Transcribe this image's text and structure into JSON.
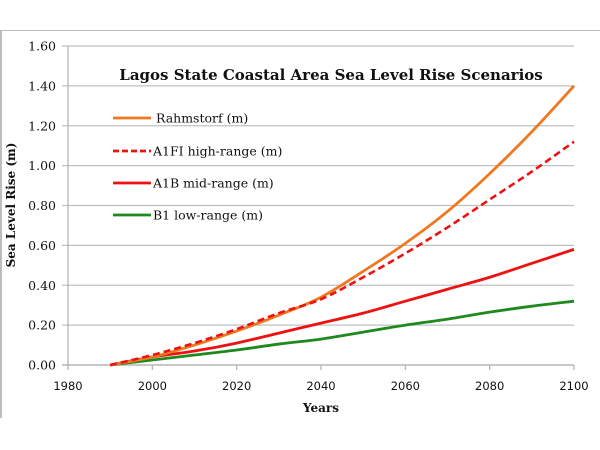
{
  "chart_data": {
    "type": "line",
    "title": "Lagos State Coastal Area Sea Level Rise Scenarios",
    "xlabel": "Years",
    "ylabel": "Sea Level Rise (m)",
    "xlim": [
      1980,
      2100
    ],
    "ylim": [
      0,
      1.6
    ],
    "x_ticks": [
      "1980",
      "2000",
      "2020",
      "2040",
      "2060",
      "2080",
      "2100"
    ],
    "y_ticks": [
      "0.00",
      "0.20",
      "0.40",
      "0.60",
      "0.80",
      "1.00",
      "1.20",
      "1.40",
      "1.60"
    ],
    "grid": true,
    "legend_position": "top-left",
    "x": [
      1990,
      2000,
      2010,
      2020,
      2030,
      2040,
      2050,
      2060,
      2070,
      2080,
      2090,
      2100
    ],
    "series": [
      {
        "name": "Rahmstorf (m)",
        "color": "#f07820",
        "dash": false,
        "values": [
          0,
          0.04,
          0.1,
          0.17,
          0.25,
          0.34,
          0.47,
          0.61,
          0.77,
          0.96,
          1.17,
          1.4
        ]
      },
      {
        "name": "A1FI high-range (m)",
        "color": "#ee1111",
        "dash": true,
        "values": [
          0,
          0.05,
          0.11,
          0.18,
          0.26,
          0.33,
          0.44,
          0.56,
          0.69,
          0.83,
          0.97,
          1.12
        ]
      },
      {
        "name": "A1B mid-range (m)",
        "color": "#ee1111",
        "dash": false,
        "values": [
          0,
          0.04,
          0.07,
          0.11,
          0.16,
          0.21,
          0.26,
          0.32,
          0.38,
          0.44,
          0.51,
          0.58
        ]
      },
      {
        "name": "B1 low-range (m)",
        "color": "#1e8a1e",
        "dash": false,
        "values": [
          0,
          0.025,
          0.05,
          0.075,
          0.105,
          0.13,
          0.165,
          0.2,
          0.23,
          0.265,
          0.295,
          0.32
        ]
      }
    ]
  }
}
